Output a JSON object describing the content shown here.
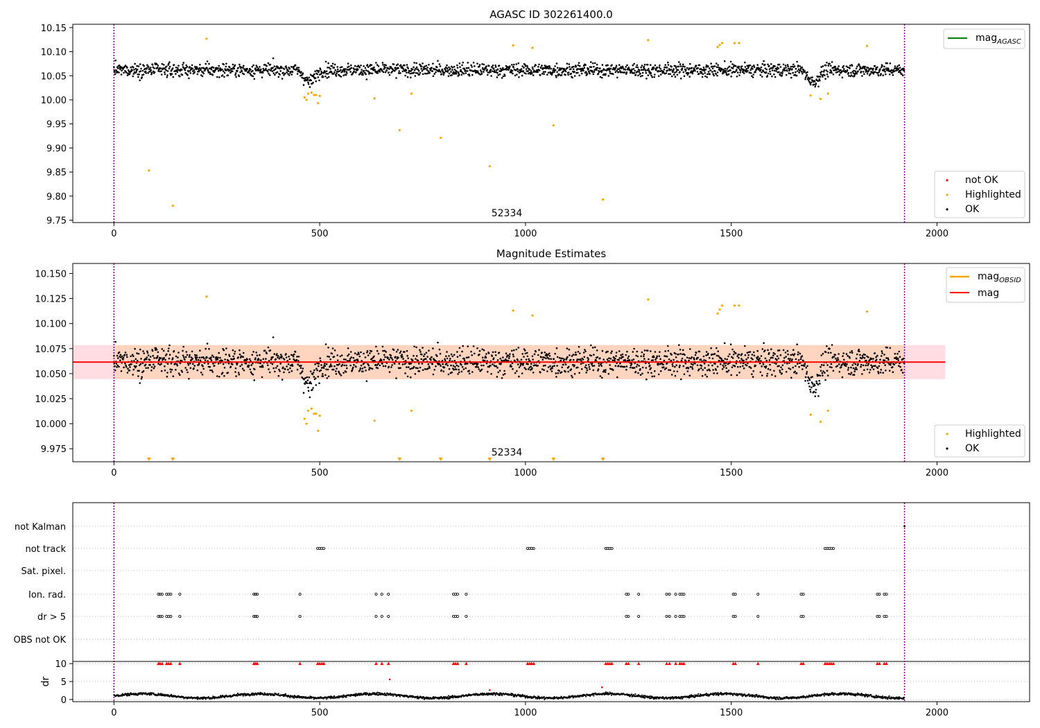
{
  "chart_data": [
    {
      "type": "scatter",
      "title": "AGASC ID 302261400.0",
      "xlabel": "",
      "ylabel": "",
      "xlim": [
        -100,
        2225
      ],
      "ylim": [
        9.745,
        10.157
      ],
      "x_ticks": [
        0,
        500,
        1000,
        1500,
        2000
      ],
      "y_ticks": [
        9.75,
        9.8,
        9.85,
        9.9,
        9.95,
        10.0,
        10.05,
        10.1,
        10.15
      ],
      "y_tick_labels": [
        "9.75",
        "9.80",
        "9.85",
        "9.90",
        "9.95",
        "10.00",
        "10.05",
        "10.10",
        "10.15"
      ],
      "vlines": [
        0,
        1921
      ],
      "obsid_label": {
        "text": "52334",
        "x": 960,
        "y": 9.76
      },
      "legend_lines": [
        {
          "label": "mag",
          "sub": "AGASC",
          "color": "#008000"
        }
      ],
      "legend_points": [
        {
          "label": "not OK",
          "color": "#ff0000"
        },
        {
          "label": "Highlighted",
          "color": "#ffa500"
        },
        {
          "label": "OK",
          "color": "#000000"
        }
      ],
      "ok_series": {
        "n": 1921,
        "base": 10.062,
        "spread": 0.013,
        "dips": [
          [
            475,
            25,
            -0.025
          ],
          [
            1700,
            25,
            -0.025
          ]
        ]
      },
      "highlighted_points": [
        [
          85,
          9.853
        ],
        [
          143,
          9.78
        ],
        [
          225,
          10.127
        ],
        [
          463,
          10.005
        ],
        [
          468,
          10.0
        ],
        [
          472,
          10.013
        ],
        [
          480,
          10.015
        ],
        [
          486,
          10.01
        ],
        [
          491,
          10.01
        ],
        [
          496,
          9.993
        ],
        [
          500,
          10.008
        ],
        [
          633,
          10.003
        ],
        [
          694,
          9.937
        ],
        [
          723,
          10.013
        ],
        [
          794,
          9.921
        ],
        [
          913,
          9.862
        ],
        [
          970,
          10.113
        ],
        [
          1017,
          10.108
        ],
        [
          1068,
          9.947
        ],
        [
          1188,
          9.793
        ],
        [
          1298,
          10.124
        ],
        [
          1467,
          10.11
        ],
        [
          1472,
          10.114
        ],
        [
          1478,
          10.118
        ],
        [
          1508,
          10.118
        ],
        [
          1519,
          10.118
        ],
        [
          1693,
          10.009
        ],
        [
          1717,
          10.002
        ],
        [
          1735,
          10.013
        ],
        [
          1830,
          10.112
        ]
      ]
    },
    {
      "type": "scatter",
      "title": "Magnitude Estimates",
      "xlabel": "",
      "ylabel": "",
      "xlim": [
        -100,
        2225
      ],
      "ylim": [
        9.962,
        10.16
      ],
      "x_ticks": [
        0,
        500,
        1000,
        1500,
        2000
      ],
      "y_ticks": [
        9.975,
        10.0,
        10.025,
        10.05,
        10.075,
        10.1,
        10.125,
        10.15
      ],
      "y_tick_labels": [
        "9.975",
        "10.000",
        "10.025",
        "10.050",
        "10.075",
        "10.100",
        "10.125",
        "10.150"
      ],
      "vlines": [
        0,
        1921
      ],
      "mag_line": {
        "value": 10.0615,
        "x_range": [
          -100,
          2020
        ],
        "color": "#ff0000"
      },
      "mag_band_total": {
        "low": 10.0445,
        "high": 10.0785,
        "x_range": [
          -100,
          2020
        ],
        "color": "#ffdde3"
      },
      "mag_band_obsid": {
        "low": 10.0445,
        "high": 10.0785,
        "x_range": [
          0,
          1921
        ],
        "color": "#ffd5c0"
      },
      "obsid_label": {
        "text": "52334",
        "x": 960,
        "y": 9.978
      },
      "legend_lines": [
        {
          "label": "mag",
          "sub": "OBSID",
          "color": "#ffa500"
        },
        {
          "label": "mag",
          "sub": "",
          "color": "#ff0000"
        }
      ],
      "legend_points": [
        {
          "label": "Highlighted",
          "color": "#ffa500"
        },
        {
          "label": "OK",
          "color": "#000000"
        }
      ],
      "offscale_markers_x": [
        85,
        143,
        694,
        794,
        913,
        1068,
        1188
      ]
    },
    {
      "type": "scatter",
      "title": "",
      "xlabel": "",
      "ylabel": "",
      "xlim": [
        -100,
        2225
      ],
      "x_ticks": [
        0,
        500,
        1000,
        1500,
        2000
      ],
      "vlines": [
        0,
        1921
      ],
      "flag_rows": [
        "not Kalman",
        "not track",
        "Sat. pixel.",
        "Ion. rad.",
        "dr > 5",
        "OBS not OK"
      ],
      "not_track_x": [
        495,
        500,
        505,
        510,
        1005,
        1010,
        1015,
        1020,
        1195,
        1200,
        1205,
        1210,
        1728,
        1733,
        1738,
        1743,
        1748
      ],
      "ion_rad_x": [
        108,
        112,
        117,
        128,
        133,
        138,
        160,
        340,
        344,
        348,
        452,
        637,
        651,
        667,
        825,
        830,
        835,
        856,
        1245,
        1250,
        1275,
        1343,
        1350,
        1365,
        1375,
        1380,
        1385,
        1505,
        1510,
        1565,
        1670,
        1675,
        1855,
        1860,
        1872,
        1877
      ],
      "not_kalman_x": [
        1921
      ],
      "dr_panel": {
        "ylabel": "dr",
        "ylim": [
          -0.6,
          10.6
        ],
        "y_ticks": [
          0,
          5,
          10
        ],
        "y_tick_labels": [
          "0",
          "5",
          "10"
        ],
        "threshold": 10,
        "outliers": [
          [
            670,
            5.6
          ],
          [
            1186,
            3.4
          ],
          [
            913,
            2.6
          ]
        ]
      }
    }
  ]
}
